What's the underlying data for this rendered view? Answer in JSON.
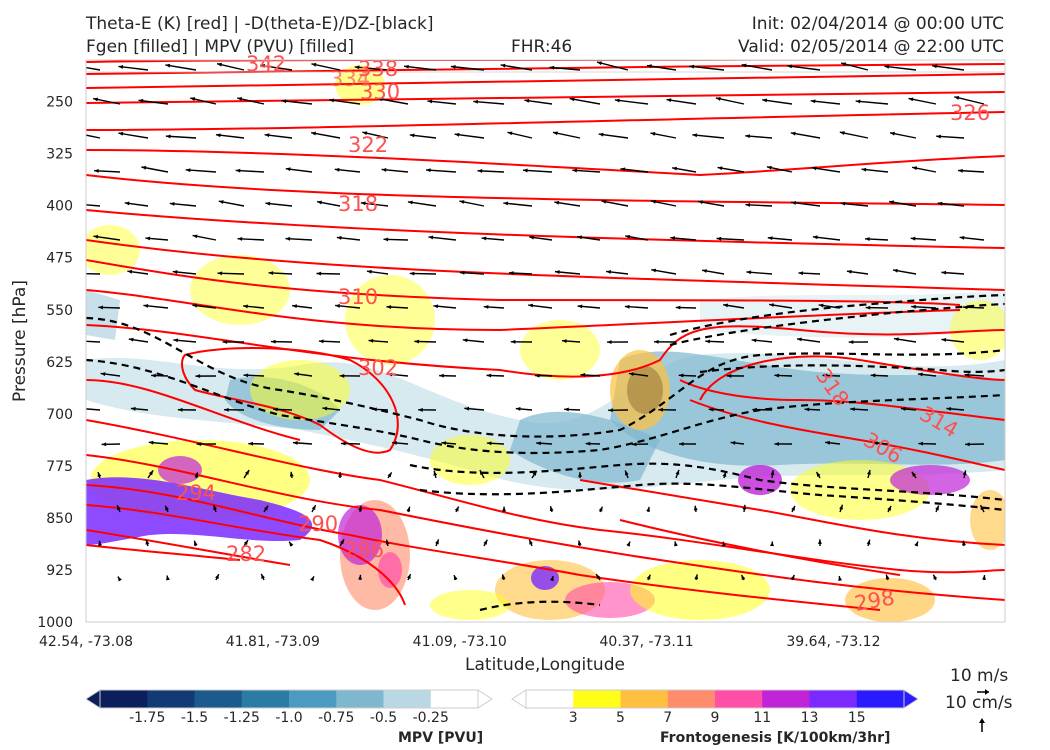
{
  "header": {
    "title_line1": "Theta-E (K) [red] | -D(theta-E)/DZ-[black]",
    "title_line2": "Fgen [filled] | MPV (PVU) [filled]",
    "fhr": "FHR:46",
    "init": "Init: 02/04/2014 @ 00:00 UTC",
    "valid": "Valid: 02/05/2014 @ 22:00 UTC"
  },
  "chart_data": {
    "type": "cross-section",
    "xlabel": "Latitude,Longitude",
    "ylabel": "Pressure [hPa]",
    "x_ticks": [
      "42.54, -73.08",
      "41.81, -73.09",
      "41.09, -73.10",
      "40.37, -73.11",
      "39.64, -73.12"
    ],
    "y_ticks": [
      250,
      325,
      400,
      475,
      550,
      625,
      700,
      775,
      850,
      925,
      1000
    ],
    "ylim": [
      190,
      1000
    ],
    "y_inverted": true,
    "theta_e_contours": {
      "color": "#ff0000",
      "labels": [
        "342",
        "338",
        "334",
        "330",
        "326",
        "322",
        "318",
        "310",
        "302",
        "318",
        "314",
        "306",
        "294",
        "290",
        "286",
        "282",
        "298"
      ]
    },
    "vector_key": {
      "horizontal": "10 m/s",
      "vertical": "10 cm/s"
    },
    "mpv_colorbar": {
      "title": "MPV [PVU]",
      "tick_labels": [
        "-1.75",
        "-1.5",
        "-1.25",
        "-1.0",
        "-0.75",
        "-0.5",
        "-0.25"
      ],
      "colors": [
        "#0a1f5c",
        "#123a74",
        "#1a5a8c",
        "#2a7ba6",
        "#4a9bbf",
        "#7fb7cf",
        "#b9d8e3",
        "#ffffff"
      ]
    },
    "fgen_colorbar": {
      "title": "Frontogenesis [K/100km/3hr]",
      "tick_labels": [
        "3",
        "5",
        "7",
        "9",
        "11",
        "13",
        "15"
      ],
      "colors": [
        "#ffffff",
        "#ffff1a",
        "#ffc040",
        "#ff8c6a",
        "#ff4fa6",
        "#c023d8",
        "#7a2aff",
        "#2a1aff"
      ]
    }
  }
}
